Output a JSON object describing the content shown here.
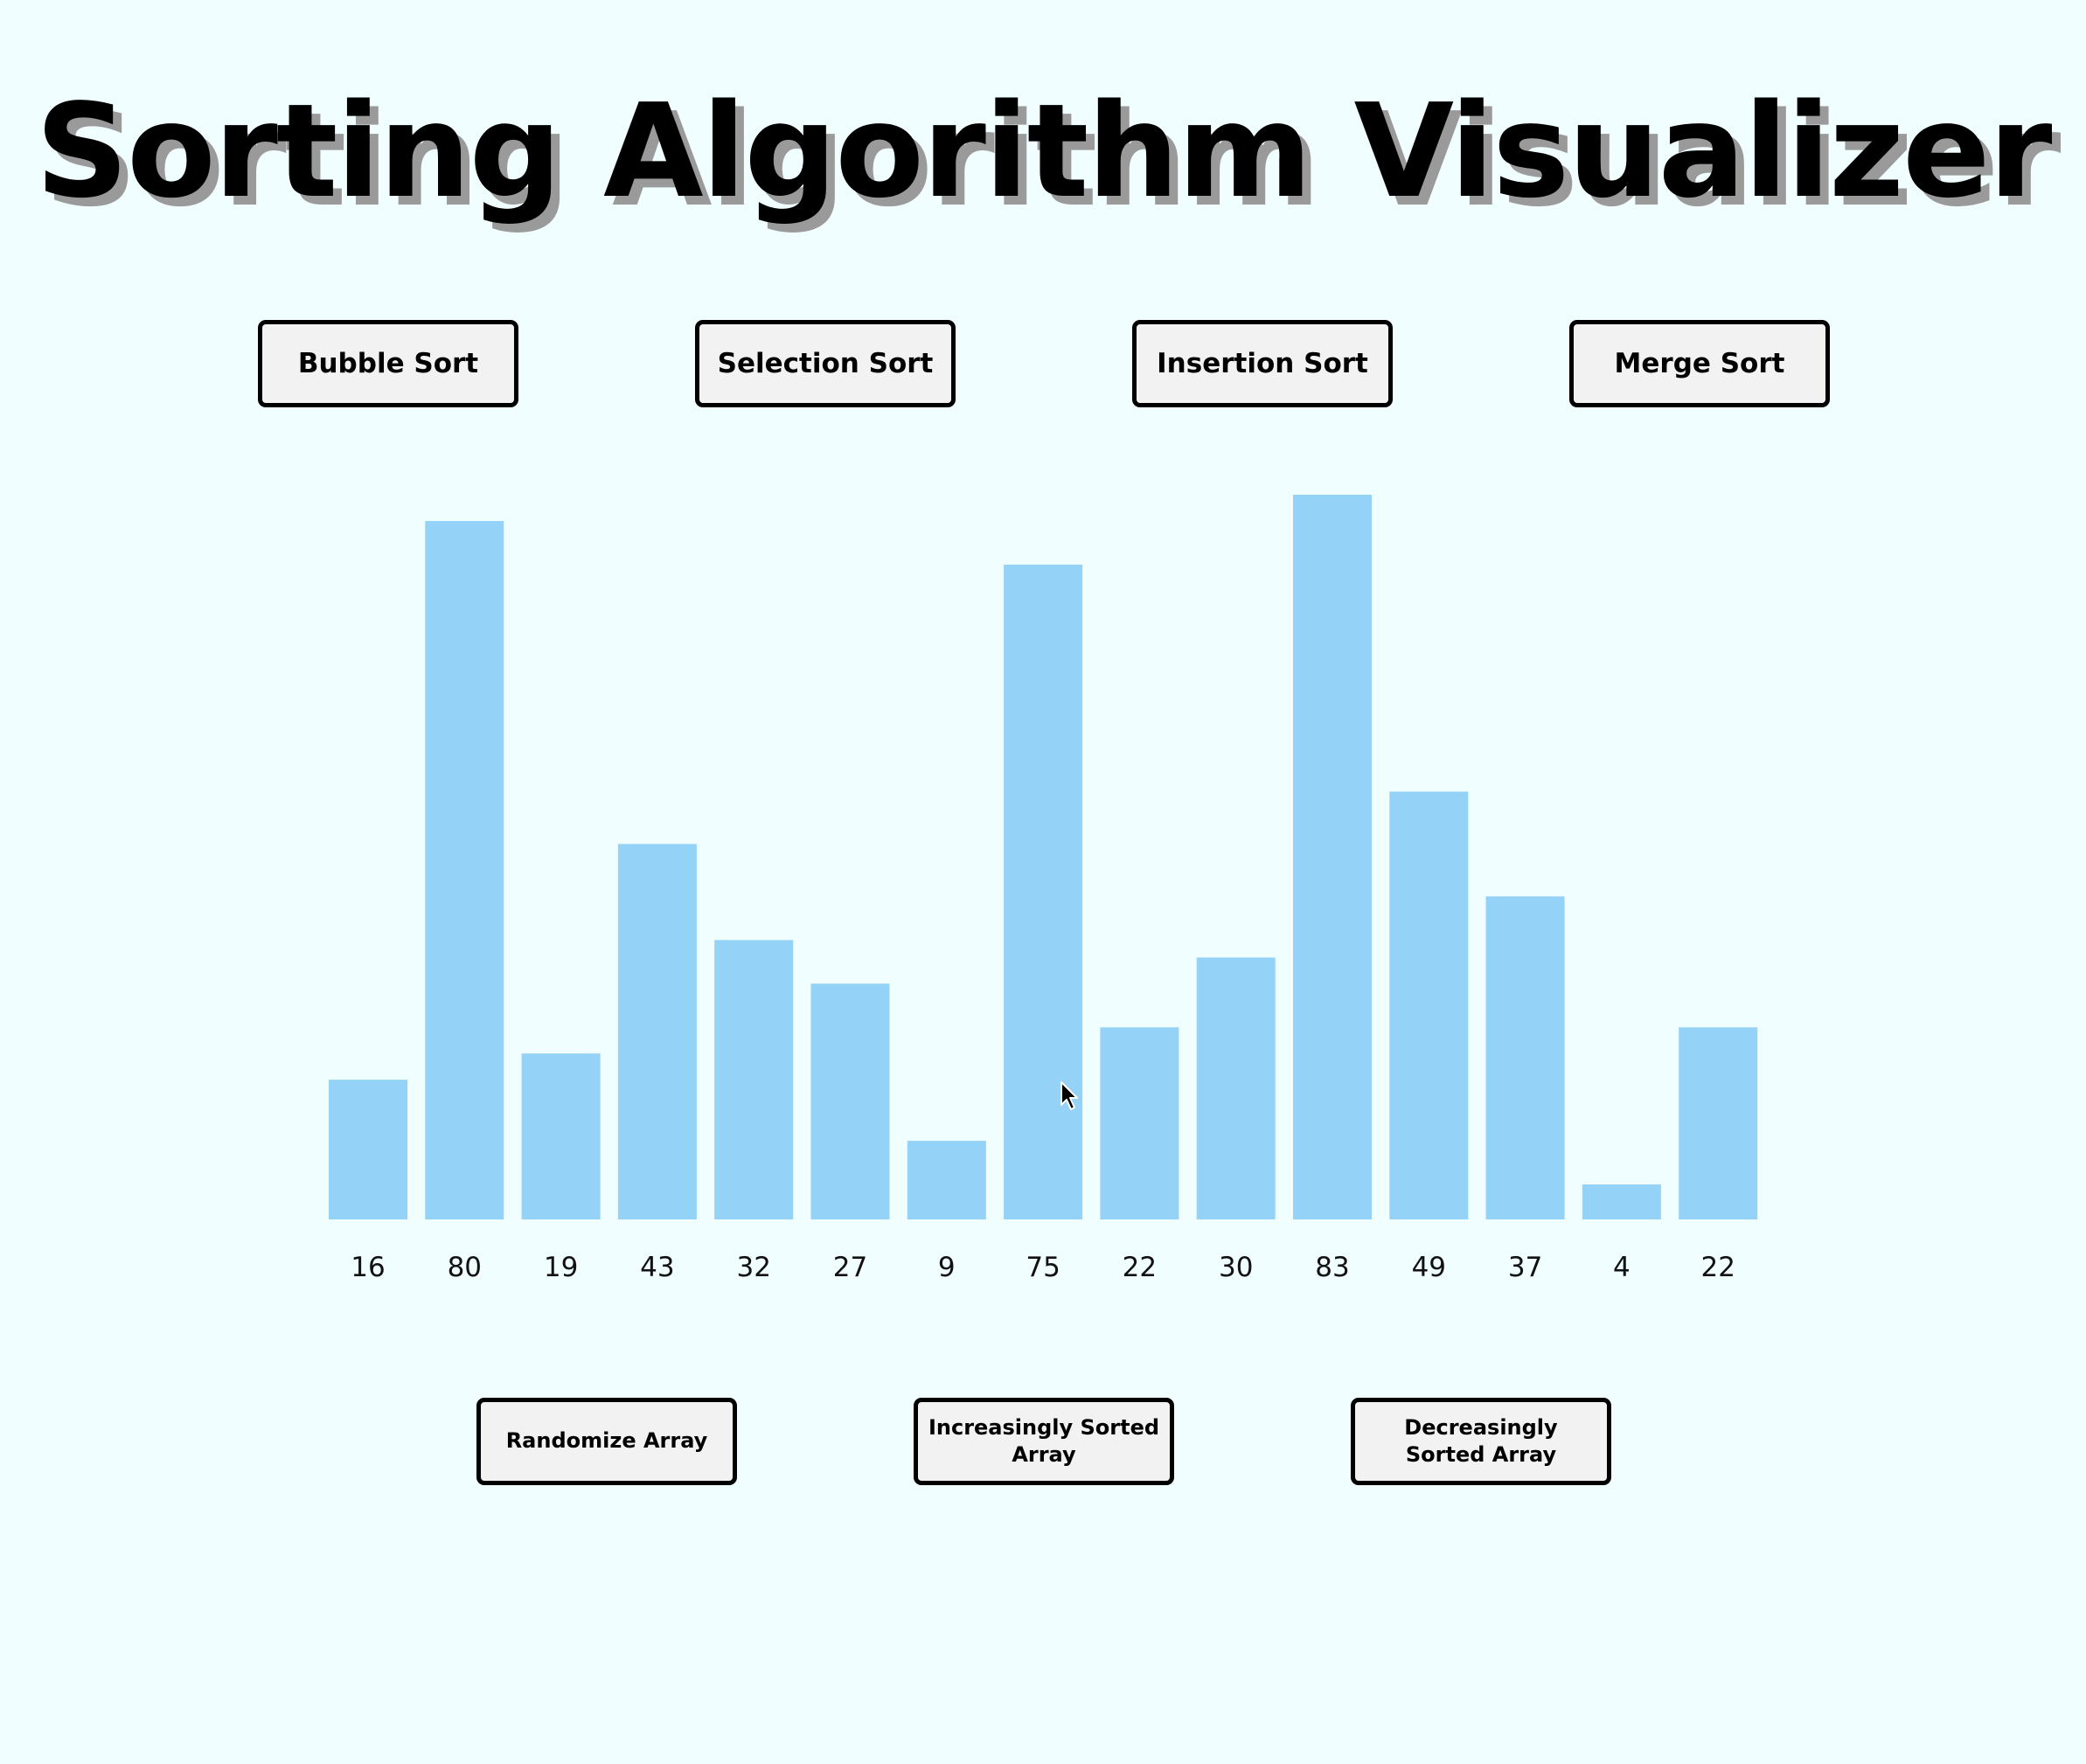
{
  "title": "Sorting Algorithm Visualizer",
  "algorithms": {
    "bubble": "Bubble Sort",
    "selection": "Selection Sort",
    "insertion": "Insertion Sort",
    "merge": "Merge Sort"
  },
  "array_actions": {
    "randomize": "Randomize Array",
    "increasing": "Increasingly Sorted Array",
    "decreasing": "Decreasingly Sorted Array"
  },
  "chart_data": {
    "type": "bar",
    "categories": [
      "16",
      "80",
      "19",
      "43",
      "32",
      "27",
      "9",
      "75",
      "22",
      "30",
      "83",
      "49",
      "37",
      "4",
      "22"
    ],
    "values": [
      16,
      80,
      19,
      43,
      32,
      27,
      9,
      75,
      22,
      30,
      83,
      49,
      37,
      4,
      22
    ],
    "title": "",
    "xlabel": "",
    "ylabel": "",
    "ylim": [
      0,
      83
    ],
    "grid": false,
    "bar_color": "#94d2f7"
  },
  "colors": {
    "background": "#f1feff",
    "bar": "#94d2f7",
    "button_bg": "#f2f2f2",
    "button_border": "#000000"
  },
  "cursor": {
    "icon": "mouse-pointer-icon"
  }
}
